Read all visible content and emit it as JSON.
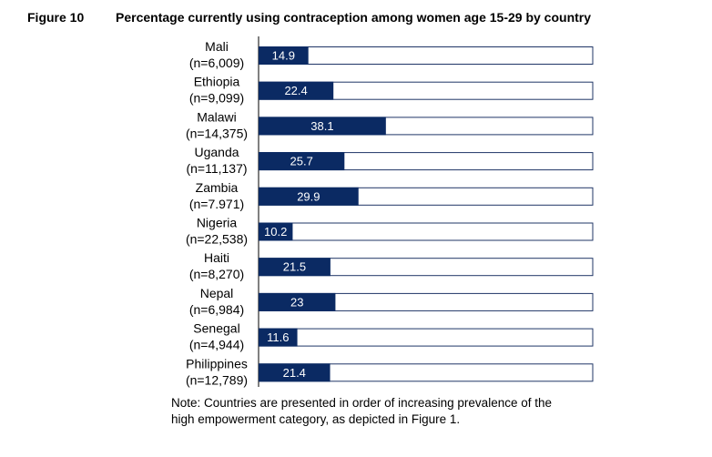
{
  "figure": {
    "number": "Figure 10",
    "title": "Percentage currently using contraception among women age 15-29 by country"
  },
  "chart_data": {
    "type": "bar",
    "orientation": "horizontal",
    "stacked_remainder": true,
    "xlim": [
      0,
      100
    ],
    "bar_color": "#0b2a63",
    "remainder_color": "#ffffff",
    "categories": [
      {
        "name": "Mali",
        "n": "(n=6,009)"
      },
      {
        "name": "Ethiopia",
        "n": "(n=9,099)"
      },
      {
        "name": "Malawi",
        "n": "(n=14,375)"
      },
      {
        "name": "Uganda",
        "n": "(n=11,137)"
      },
      {
        "name": "Zambia",
        "n": "(n=7.971)"
      },
      {
        "name": "Nigeria",
        "n": "(n=22,538)"
      },
      {
        "name": "Haiti",
        "n": "(n=8,270)"
      },
      {
        "name": "Nepal",
        "n": "(n=6,984)"
      },
      {
        "name": "Senegal",
        "n": "(n=4,944)"
      },
      {
        "name": "Philippines",
        "n": "(n=12,789)"
      }
    ],
    "values": [
      14.9,
      22.4,
      38.1,
      25.7,
      29.9,
      10.2,
      21.5,
      23,
      11.6,
      21.4
    ],
    "value_labels": [
      "14.9",
      "22.4",
      "38.1",
      "25.7",
      "29.9",
      "10.2",
      "21.5",
      "23",
      "11.6",
      "21.4"
    ]
  },
  "note": {
    "line1": "Note: Countries are presented in order of increasing prevalence of the",
    "line2": "high empowerment category, as depicted in Figure 1."
  }
}
